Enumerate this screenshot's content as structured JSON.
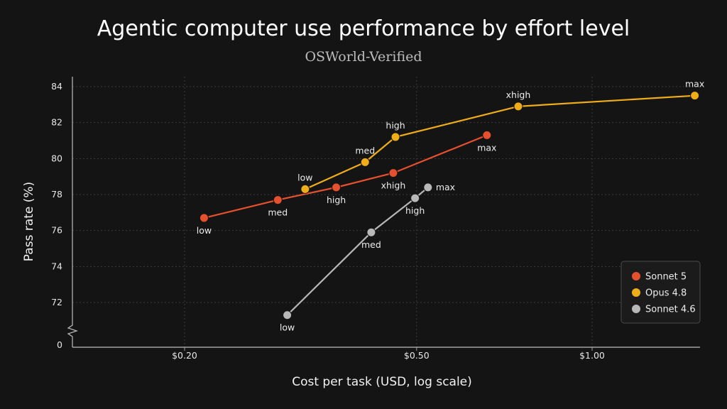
{
  "chart_data": {
    "type": "line",
    "title": "Agentic computer use performance by effort level",
    "subtitle": "OSWorld-Verified",
    "xlabel": "Cost per task (USD, log scale)",
    "ylabel": "Pass rate (%)",
    "x_scale": "log",
    "xlim": [
      0.13,
      1.65
    ],
    "ylim": [
      70.6,
      84.9
    ],
    "y_axis_break": true,
    "x_ticks": [
      {
        "value": 0.2,
        "label": "$0.20"
      },
      {
        "value": 0.5,
        "label": "$0.50"
      },
      {
        "value": 1.0,
        "label": "$1.00"
      }
    ],
    "y_ticks": [
      72,
      74,
      76,
      78,
      80,
      82,
      84
    ],
    "y_break_label": "0",
    "grid": true,
    "legend_position": "bottom-right",
    "series": [
      {
        "name": "Sonnet 5",
        "color": "#e5502f",
        "points": [
          {
            "x": 0.216,
            "y": 76.7,
            "label": "low",
            "label_pos": "below"
          },
          {
            "x": 0.289,
            "y": 77.7,
            "label": "med",
            "label_pos": "below"
          },
          {
            "x": 0.364,
            "y": 78.4,
            "label": "high",
            "label_pos": "below"
          },
          {
            "x": 0.456,
            "y": 79.2,
            "label": "xhigh",
            "label_pos": "below"
          },
          {
            "x": 0.66,
            "y": 81.3,
            "label": "max",
            "label_pos": "below"
          }
        ]
      },
      {
        "name": "Opus 4.8",
        "color": "#f0ad1a",
        "points": [
          {
            "x": 0.322,
            "y": 78.3,
            "label": "low",
            "label_pos": "above"
          },
          {
            "x": 0.408,
            "y": 79.8,
            "label": "med",
            "label_pos": "above"
          },
          {
            "x": 0.46,
            "y": 81.2,
            "label": "high",
            "label_pos": "above"
          },
          {
            "x": 0.747,
            "y": 82.9,
            "label": "xhigh",
            "label_pos": "above"
          },
          {
            "x": 1.5,
            "y": 83.5,
            "label": "max",
            "label_pos": "above"
          }
        ]
      },
      {
        "name": "Sonnet 4.6",
        "color": "#b8b8b8",
        "points": [
          {
            "x": 0.3,
            "y": 71.3,
            "label": "low",
            "label_pos": "below"
          },
          {
            "x": 0.418,
            "y": 75.9,
            "label": "med",
            "label_pos": "below"
          },
          {
            "x": 0.497,
            "y": 77.8,
            "label": "high",
            "label_pos": "below"
          },
          {
            "x": 0.523,
            "y": 78.4,
            "label": "max",
            "label_pos": "right"
          }
        ]
      }
    ]
  }
}
